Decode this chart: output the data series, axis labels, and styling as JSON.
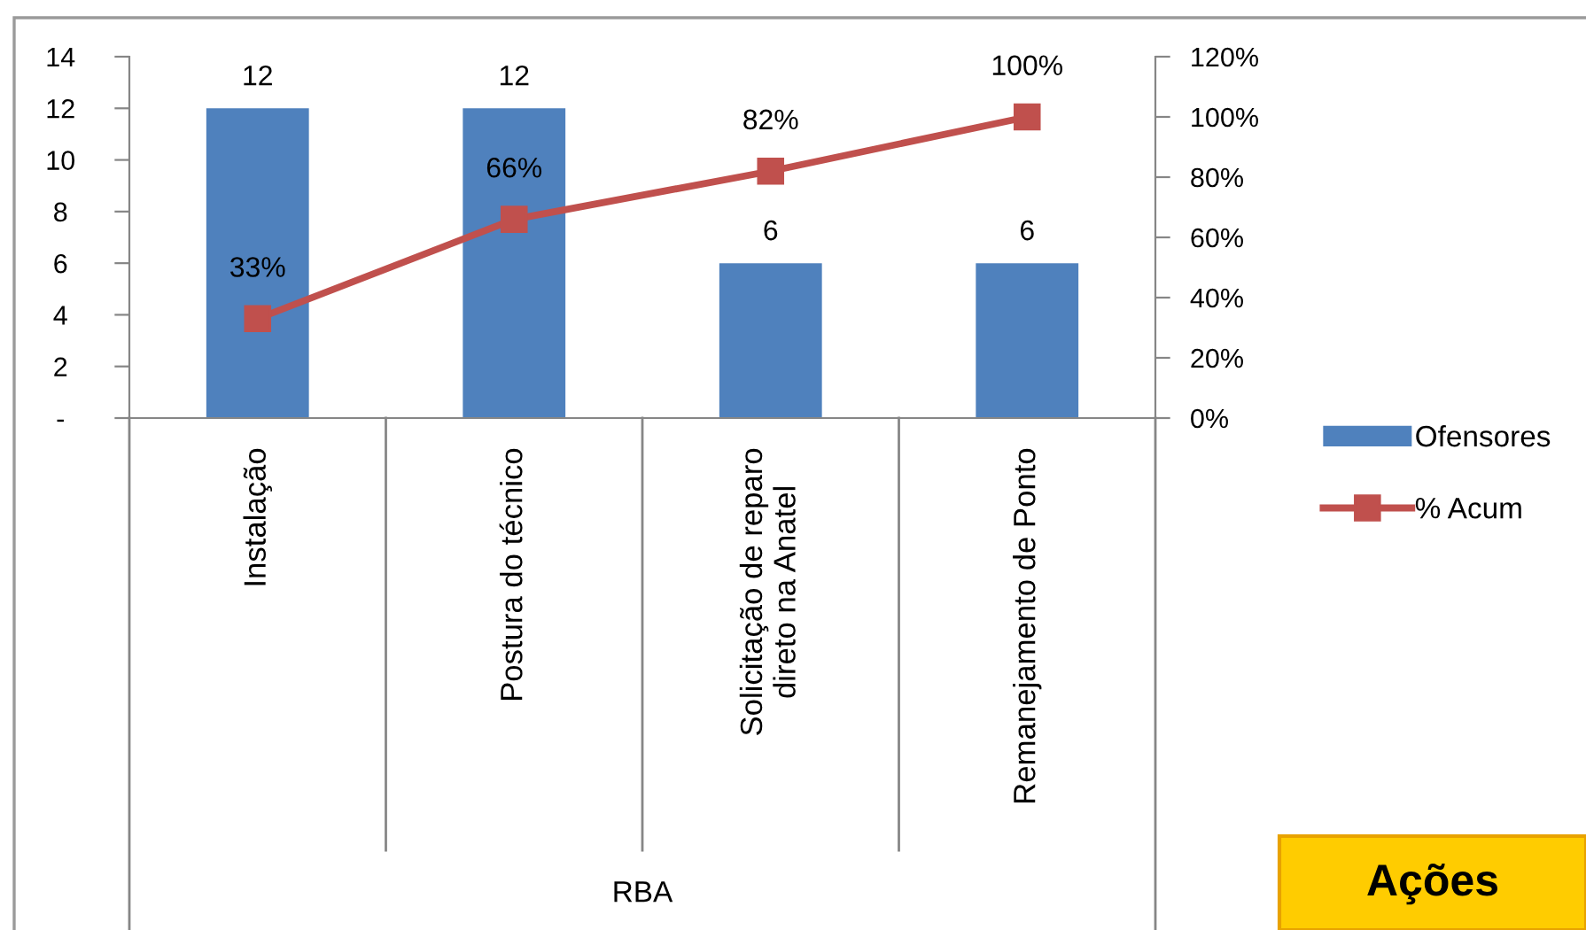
{
  "chart_data": {
    "type": "bar",
    "categories": [
      "Instalação",
      "Postura do técnico",
      "Solicitação de reparo direto na Anatel",
      "Remanejamento de Ponto"
    ],
    "xlabel": "RBA",
    "series": [
      {
        "name": "Ofensores",
        "color": "#4f81bd",
        "values": [
          12,
          12,
          6,
          6
        ],
        "value_labels": [
          "12",
          "12",
          "6",
          "6"
        ]
      },
      {
        "name": "% Acum",
        "type": "line",
        "axis": "y2",
        "color": "#c0504d",
        "marker": "square",
        "values": [
          33,
          66,
          82,
          100
        ],
        "value_labels": [
          "33%",
          "66%",
          "82%",
          "100%"
        ]
      }
    ],
    "ylim": [
      0,
      14
    ],
    "yticks": [
      {
        "value": 0,
        "label": "-"
      },
      2,
      4,
      6,
      8,
      10,
      12,
      14
    ],
    "y2lim": [
      0,
      120
    ],
    "y2ticks": [
      {
        "value": 0,
        "label": "0%"
      },
      {
        "value": 20,
        "label": "20%"
      },
      {
        "value": 40,
        "label": "40%"
      },
      {
        "value": 60,
        "label": "60%"
      },
      {
        "value": 80,
        "label": "80%"
      },
      {
        "value": 100,
        "label": "100%"
      },
      {
        "value": 120,
        "label": "120%"
      }
    ],
    "legend": "right",
    "annotations": [
      "Ações"
    ]
  }
}
